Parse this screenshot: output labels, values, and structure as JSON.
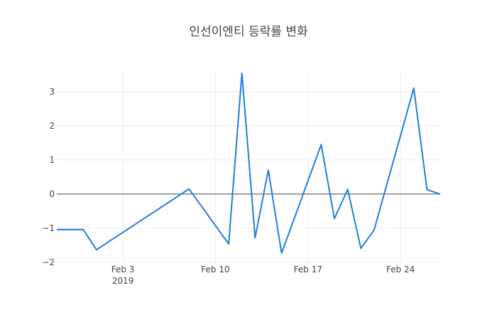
{
  "chart_data": {
    "type": "line",
    "title": "인선이엔티 등락률 변화",
    "xlabel": "",
    "ylabel": "",
    "x_ticks": [
      {
        "date": "2019-02-03",
        "label": "Feb 3",
        "sublabel": "2019"
      },
      {
        "date": "2019-02-10",
        "label": "Feb 10",
        "sublabel": ""
      },
      {
        "date": "2019-02-17",
        "label": "Feb 17",
        "sublabel": ""
      },
      {
        "date": "2019-02-24",
        "label": "Feb 24",
        "sublabel": ""
      }
    ],
    "y_ticks": [
      -2,
      -1,
      0,
      1,
      2,
      3
    ],
    "y_tick_labels": [
      "−2",
      "−1",
      "0",
      "1",
      "2",
      "3"
    ],
    "xlim": [
      "2019-01-29",
      "2019-02-27"
    ],
    "ylim": [
      -2.0,
      3.6
    ],
    "grid": true,
    "line_color": "#1f7fe0",
    "series": [
      {
        "x": [
          "2019-01-29",
          "2019-01-31",
          "2019-02-01",
          "2019-02-08",
          "2019-02-11",
          "2019-02-12",
          "2019-02-13",
          "2019-02-14",
          "2019-02-15",
          "2019-02-18",
          "2019-02-19",
          "2019-02-20",
          "2019-02-21",
          "2019-02-22",
          "2019-02-25",
          "2019-02-26",
          "2019-02-27"
        ],
        "y": [
          -1.04,
          -1.04,
          -1.63,
          0.15,
          -1.46,
          3.54,
          -1.28,
          0.7,
          -1.73,
          1.45,
          -0.72,
          0.14,
          -1.59,
          -1.05,
          3.1,
          0.13,
          0.0
        ]
      }
    ]
  }
}
